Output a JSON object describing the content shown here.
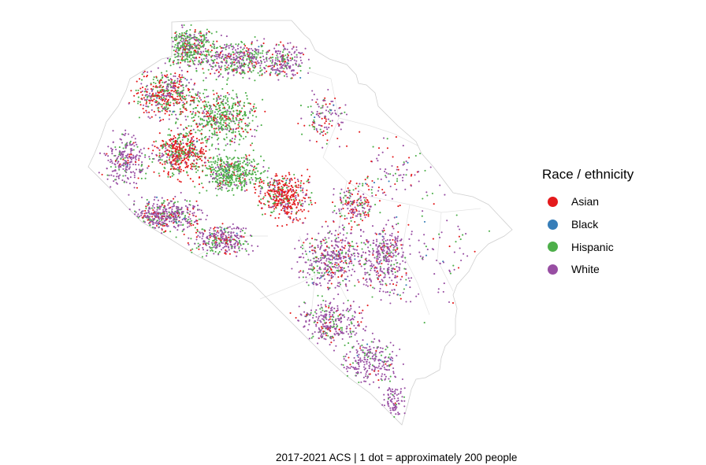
{
  "legend": {
    "title": "Race / ethnicity",
    "items": [
      {
        "label": "Asian",
        "color": "#e41a1c"
      },
      {
        "label": "Black",
        "color": "#377eb8"
      },
      {
        "label": "Hispanic",
        "color": "#4daf4a"
      },
      {
        "label": "White",
        "color": "#984ea3"
      }
    ]
  },
  "caption": "2017-2021 ACS | 1 dot = approximately 200 people"
}
